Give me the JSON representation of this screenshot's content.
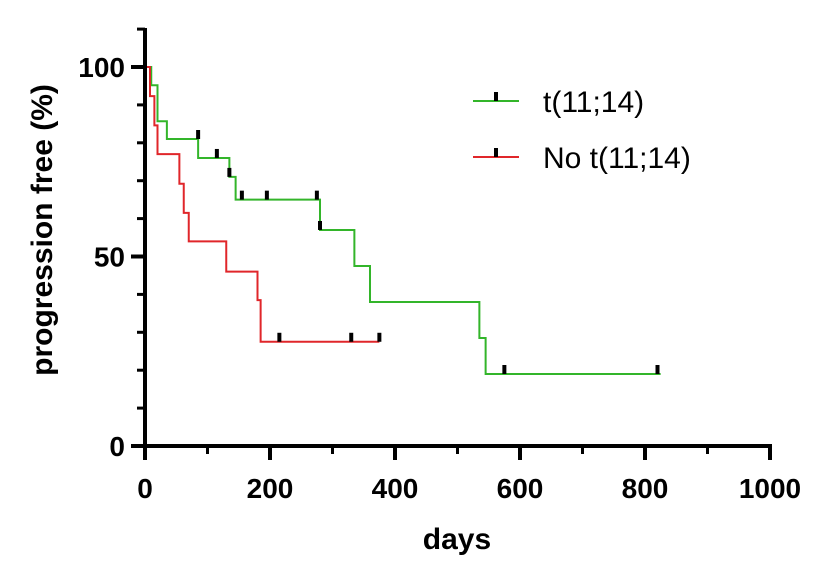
{
  "chart_data": {
    "type": "line",
    "title": "",
    "xlabel": "days",
    "ylabel": "progression free (%)",
    "xlim": [
      0,
      1000
    ],
    "ylim": [
      0,
      100
    ],
    "x_ticks": [
      0,
      200,
      400,
      600,
      800,
      1000
    ],
    "y_ticks": [
      0,
      50,
      100
    ],
    "x_tick_labels": [
      "0",
      "200",
      "400",
      "600",
      "800",
      "1000"
    ],
    "y_tick_labels": [
      "0",
      "50",
      "100"
    ],
    "grid": false,
    "legend_position": "top-right",
    "series": [
      {
        "name": "t(11;14)",
        "color": "#33b52a",
        "step": true,
        "x": [
          0,
          10,
          20,
          35,
          85,
          135,
          145,
          155,
          280,
          335,
          360,
          535,
          545,
          825
        ],
        "y": [
          100,
          95.2,
          85.7,
          81,
          76,
          71,
          65,
          65,
          57,
          47.5,
          38,
          28.5,
          19,
          19
        ],
        "censored": [
          {
            "x": 85,
            "y": 81
          },
          {
            "x": 115,
            "y": 76
          },
          {
            "x": 135,
            "y": 71
          },
          {
            "x": 155,
            "y": 65
          },
          {
            "x": 195,
            "y": 65
          },
          {
            "x": 275,
            "y": 65
          },
          {
            "x": 280,
            "y": 57
          },
          {
            "x": 575,
            "y": 19
          },
          {
            "x": 820,
            "y": 19
          }
        ]
      },
      {
        "name": "No t(11;14)",
        "color": "#e0262a",
        "step": true,
        "x": [
          0,
          8,
          15,
          20,
          55,
          62,
          70,
          130,
          180,
          185,
          375
        ],
        "y": [
          100,
          92.3,
          84.6,
          77,
          69.2,
          61.5,
          54,
          46,
          38.5,
          27.5,
          27.5
        ],
        "censored": [
          {
            "x": 215,
            "y": 27.5
          },
          {
            "x": 330,
            "y": 27.5
          },
          {
            "x": 375,
            "y": 27.5
          }
        ]
      }
    ]
  }
}
